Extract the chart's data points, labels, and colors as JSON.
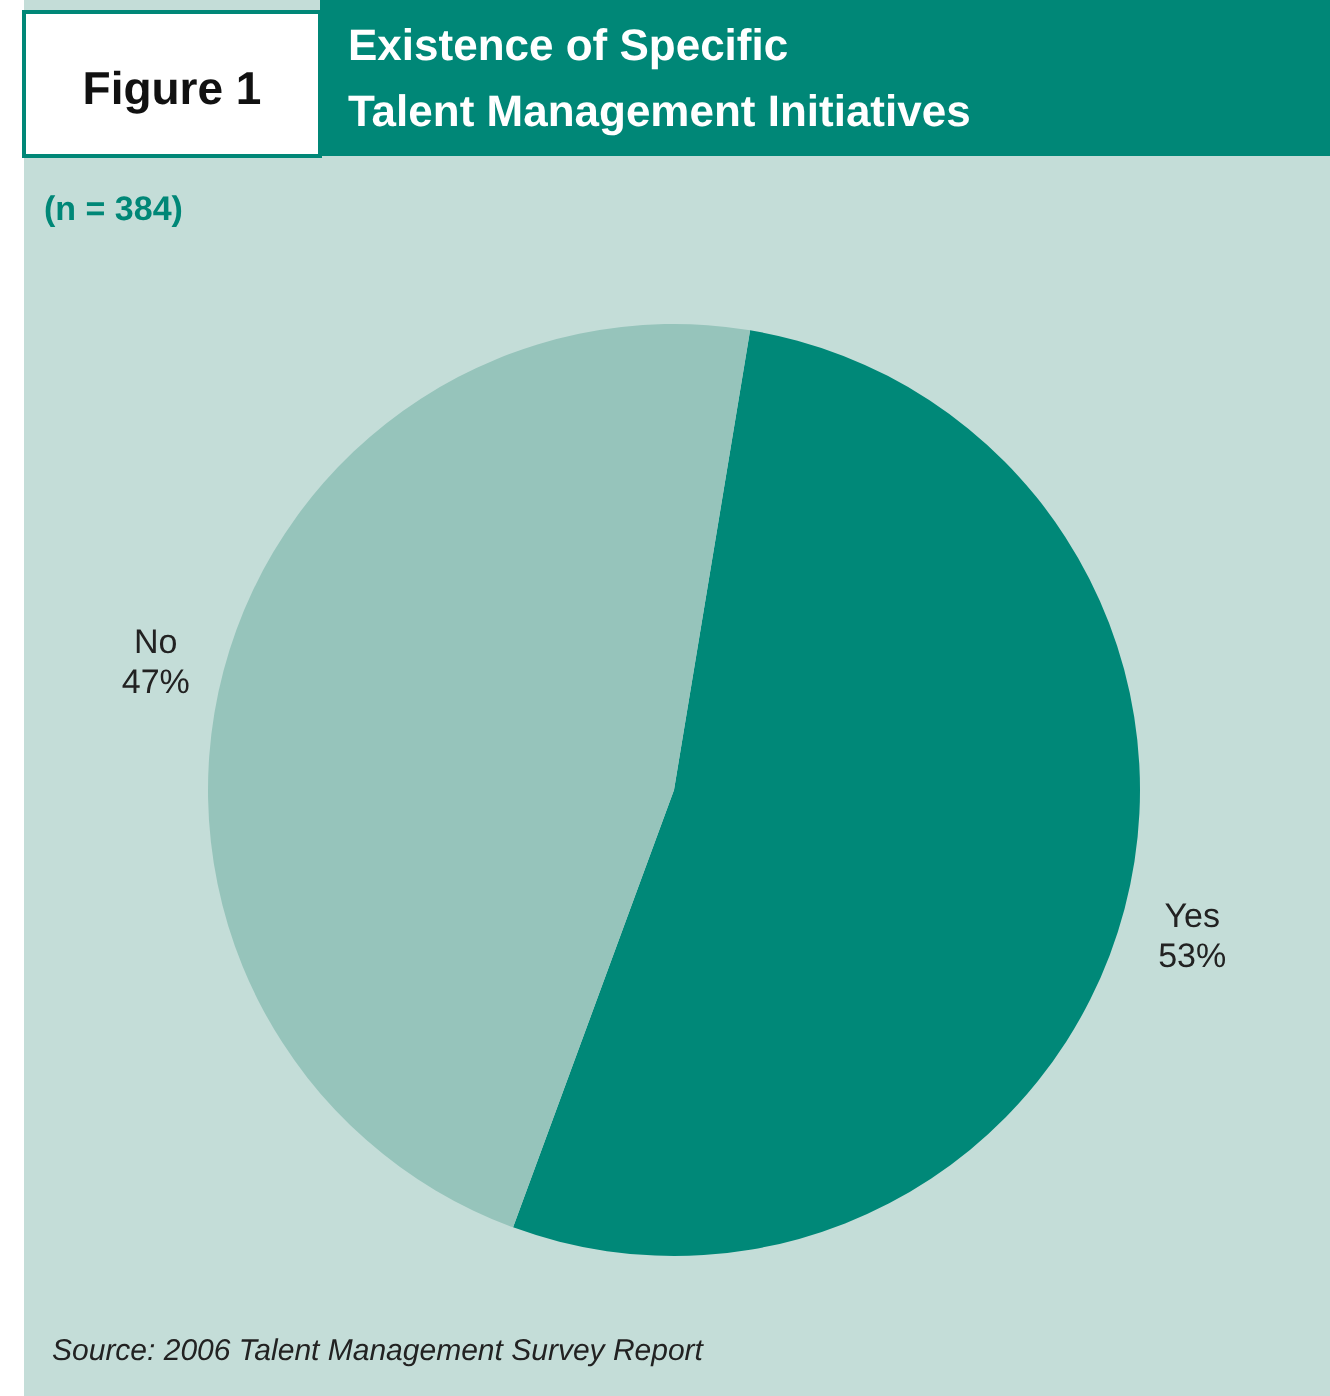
{
  "chart_data": {
    "type": "pie",
    "title": "Existence of Specific\nTalent Management Initiatives",
    "subtitle": "(n = 384)",
    "categories": [
      "Yes",
      "No"
    ],
    "values": [
      53,
      47
    ],
    "value_labels": [
      "53%",
      "47%"
    ],
    "colors": [
      "#008878",
      "#96c4bb"
    ],
    "annotations": [
      "Figure 1",
      "Source: 2006 Talent Management Survey Report"
    ]
  }
}
